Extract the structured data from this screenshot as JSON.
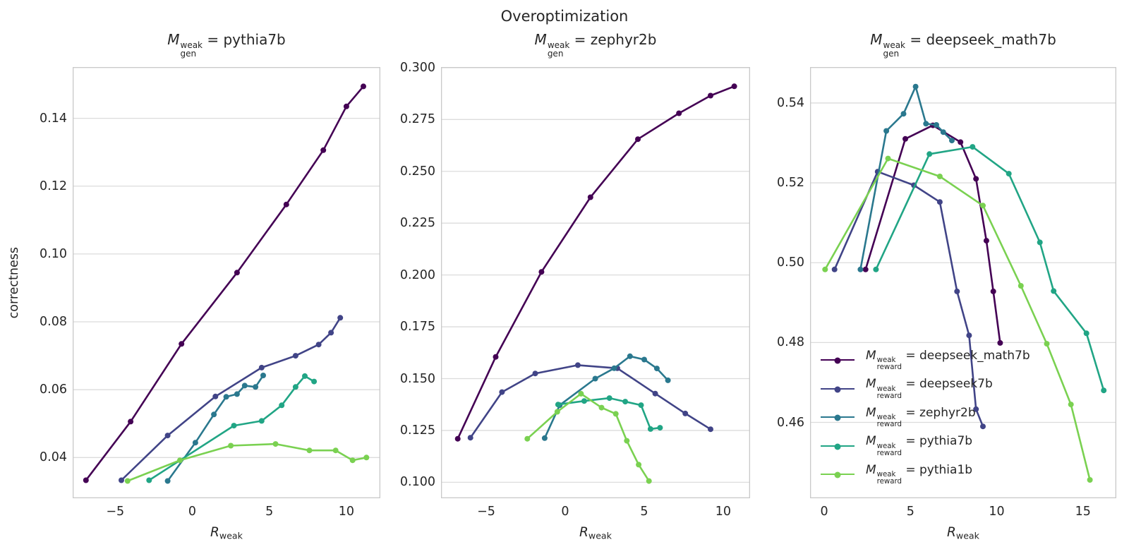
{
  "figure": {
    "title": "Overoptimization"
  },
  "ylabel": "correctness",
  "math": {
    "model_var": "M",
    "sup": "weak",
    "gen_sub": "gen",
    "reward_sub": "reward",
    "eq": "=",
    "x_var": "R",
    "x_sub": "weak"
  },
  "colors": {
    "deepseek_math7b": "#440154",
    "deepseek7b": "#414487",
    "zephyr2b": "#2a788e",
    "pythia7b": "#21a585",
    "pythia1b": "#7ad151",
    "grid": "#dcdcdc",
    "spine": "#c9c9c9",
    "text": "#262626"
  },
  "legend": {
    "position": "lower-right-of-third-panel",
    "entries": [
      {
        "model": "deepseek_math7b",
        "label": "M_reward^weak = deepseek_math7b",
        "color": "#440154"
      },
      {
        "model": "deepseek7b",
        "label": "M_reward^weak = deepseek7b",
        "color": "#414487"
      },
      {
        "model": "zephyr2b",
        "label": "M_reward^weak = zephyr2b",
        "color": "#2a788e"
      },
      {
        "model": "pythia7b",
        "label": "M_reward^weak = pythia7b",
        "color": "#21a585"
      },
      {
        "model": "pythia1b",
        "label": "M_reward^weak = pythia1b",
        "color": "#7ad151"
      }
    ]
  },
  "chart_data": [
    {
      "type": "line",
      "title": "M_gen^weak = pythia7b",
      "title_model": "pythia7b",
      "xlabel": "R_weak",
      "ylabel": "correctness",
      "xlim": [
        -7.76,
        12.2
      ],
      "ylim": [
        0.028,
        0.1551
      ],
      "x_ticks": [
        -5,
        0,
        5,
        10
      ],
      "x_tick_labels": [
        "−5",
        "0",
        "5",
        "10"
      ],
      "y_ticks": [
        0.04,
        0.06,
        0.08,
        0.1,
        0.12,
        0.14
      ],
      "y_tick_labels": [
        "0.04",
        "0.06",
        "0.08",
        "0.10",
        "0.12",
        "0.14"
      ],
      "grid": "horizontal",
      "series": [
        {
          "model": "deepseek_math7b",
          "color": "#440154",
          "x": [
            -6.9,
            -4.0,
            -0.7,
            2.9,
            6.1,
            8.5,
            10.0,
            11.1
          ],
          "y": [
            0.0333,
            0.0506,
            0.0735,
            0.0945,
            0.1146,
            0.1306,
            0.1435,
            0.1494
          ]
        },
        {
          "model": "deepseek7b",
          "color": "#414487",
          "x": [
            -4.6,
            -1.6,
            1.5,
            4.5,
            6.7,
            8.2,
            9.0,
            9.6
          ],
          "y": [
            0.0333,
            0.0465,
            0.058,
            0.0665,
            0.07,
            0.0733,
            0.0768,
            0.0812
          ]
        },
        {
          "model": "zephyr2b",
          "color": "#2a788e",
          "x": [
            -1.6,
            0.2,
            1.4,
            2.2,
            2.9,
            3.4,
            4.1,
            4.6
          ],
          "y": [
            0.0331,
            0.0444,
            0.0527,
            0.0579,
            0.0587,
            0.0612,
            0.0608,
            0.0642
          ]
        },
        {
          "model": "pythia7b",
          "color": "#21a585",
          "x": [
            -2.8,
            2.7,
            4.5,
            5.8,
            6.7,
            7.3,
            7.9
          ],
          "y": [
            0.0333,
            0.0494,
            0.0508,
            0.0554,
            0.0608,
            0.064,
            0.0624
          ]
        },
        {
          "model": "pythia1b",
          "color": "#7ad151",
          "x": [
            -4.2,
            -0.8,
            2.5,
            5.4,
            7.6,
            9.3,
            10.4,
            11.3
          ],
          "y": [
            0.0331,
            0.0392,
            0.0435,
            0.044,
            0.0421,
            0.0421,
            0.0392,
            0.04
          ]
        }
      ]
    },
    {
      "type": "line",
      "title": "M_gen^weak = zephyr2b",
      "title_model": "zephyr2b",
      "xlabel": "R_weak",
      "ylabel": "",
      "xlim": [
        -7.86,
        11.7
      ],
      "ylim": [
        0.0923,
        0.3003
      ],
      "x_ticks": [
        -5,
        0,
        5,
        10
      ],
      "x_tick_labels": [
        "−5",
        "0",
        "5",
        "10"
      ],
      "y_ticks": [
        0.1,
        0.125,
        0.15,
        0.175,
        0.2,
        0.225,
        0.25,
        0.275,
        0.3
      ],
      "y_tick_labels": [
        "0.100",
        "0.125",
        "0.150",
        "0.175",
        "0.200",
        "0.225",
        "0.250",
        "0.275",
        "0.300"
      ],
      "grid": "horizontal",
      "series": [
        {
          "model": "deepseek_math7b",
          "color": "#440154",
          "x": [
            -6.8,
            -4.4,
            -1.5,
            1.6,
            4.6,
            7.2,
            9.2,
            10.7
          ],
          "y": [
            0.121,
            0.1605,
            0.2015,
            0.2375,
            0.2655,
            0.278,
            0.2865,
            0.291
          ]
        },
        {
          "model": "deepseek7b",
          "color": "#414487",
          "x": [
            -6.0,
            -4.0,
            -1.9,
            0.8,
            3.3,
            5.7,
            7.6,
            9.2
          ],
          "y": [
            0.1215,
            0.1435,
            0.1525,
            0.1565,
            0.155,
            0.1428,
            0.1332,
            0.1256
          ]
        },
        {
          "model": "zephyr2b",
          "color": "#2a788e",
          "x": [
            -1.3,
            -0.35,
            1.9,
            3.1,
            4.1,
            5.0,
            5.8,
            6.5
          ],
          "y": [
            0.1213,
            0.1372,
            0.15,
            0.155,
            0.1608,
            0.1592,
            0.1549,
            0.1492
          ]
        },
        {
          "model": "pythia7b",
          "color": "#21a585",
          "x": [
            -0.45,
            1.2,
            2.8,
            3.8,
            4.8,
            5.4,
            6.0
          ],
          "y": [
            0.1375,
            0.1392,
            0.1406,
            0.1389,
            0.1372,
            0.1257,
            0.1263
          ]
        },
        {
          "model": "pythia1b",
          "color": "#7ad151",
          "x": [
            -2.4,
            -0.5,
            1.0,
            2.3,
            3.2,
            3.9,
            4.65,
            5.3
          ],
          "y": [
            0.121,
            0.134,
            0.1427,
            0.136,
            0.133,
            0.12,
            0.1085,
            0.1006
          ]
        }
      ]
    },
    {
      "type": "line",
      "title": "M_gen^weak = deepseek_math7b",
      "title_model": "deepseek_math7b",
      "xlabel": "R_weak",
      "ylabel": "",
      "xlim": [
        -0.82,
        16.93
      ],
      "ylim": [
        0.441,
        0.549
      ],
      "x_ticks": [
        0,
        5,
        10,
        15
      ],
      "x_tick_labels": [
        "0",
        "5",
        "10",
        "15"
      ],
      "y_ticks": [
        0.46,
        0.48,
        0.5,
        0.52,
        0.54
      ],
      "y_tick_labels": [
        "0.46",
        "0.48",
        "0.50",
        "0.52",
        "0.54"
      ],
      "grid": "horizontal",
      "series": [
        {
          "model": "deepseek_math7b",
          "color": "#440154",
          "x": [
            2.4,
            4.7,
            6.3,
            7.9,
            8.8,
            9.4,
            9.8,
            10.2
          ],
          "y": [
            0.4983,
            0.531,
            0.5344,
            0.5302,
            0.521,
            0.5055,
            0.4928,
            0.4799
          ]
        },
        {
          "model": "deepseek7b",
          "color": "#414487",
          "x": [
            0.6,
            3.1,
            5.2,
            6.7,
            7.7,
            8.4,
            8.8,
            9.2
          ],
          "y": [
            0.4983,
            0.5228,
            0.5194,
            0.5152,
            0.4928,
            0.4818,
            0.4633,
            0.459
          ]
        },
        {
          "model": "zephyr2b",
          "color": "#2a788e",
          "x": [
            2.1,
            3.6,
            4.6,
            5.3,
            5.9,
            6.5,
            6.9,
            7.4
          ],
          "y": [
            0.4983,
            0.533,
            0.5373,
            0.5441,
            0.5348,
            0.5345,
            0.5327,
            0.5306
          ]
        },
        {
          "model": "pythia7b",
          "color": "#21a585",
          "x": [
            3.0,
            6.1,
            8.6,
            10.7,
            12.5,
            13.3,
            15.2,
            16.2
          ],
          "y": [
            0.4983,
            0.5272,
            0.529,
            0.5223,
            0.5051,
            0.4929,
            0.4823,
            0.468
          ]
        },
        {
          "model": "pythia1b",
          "color": "#7ad151",
          "x": [
            0.05,
            3.7,
            6.7,
            9.2,
            11.4,
            12.9,
            14.3,
            15.4
          ],
          "y": [
            0.4983,
            0.5261,
            0.5216,
            0.5143,
            0.4942,
            0.4797,
            0.4645,
            0.4456
          ]
        }
      ]
    }
  ]
}
